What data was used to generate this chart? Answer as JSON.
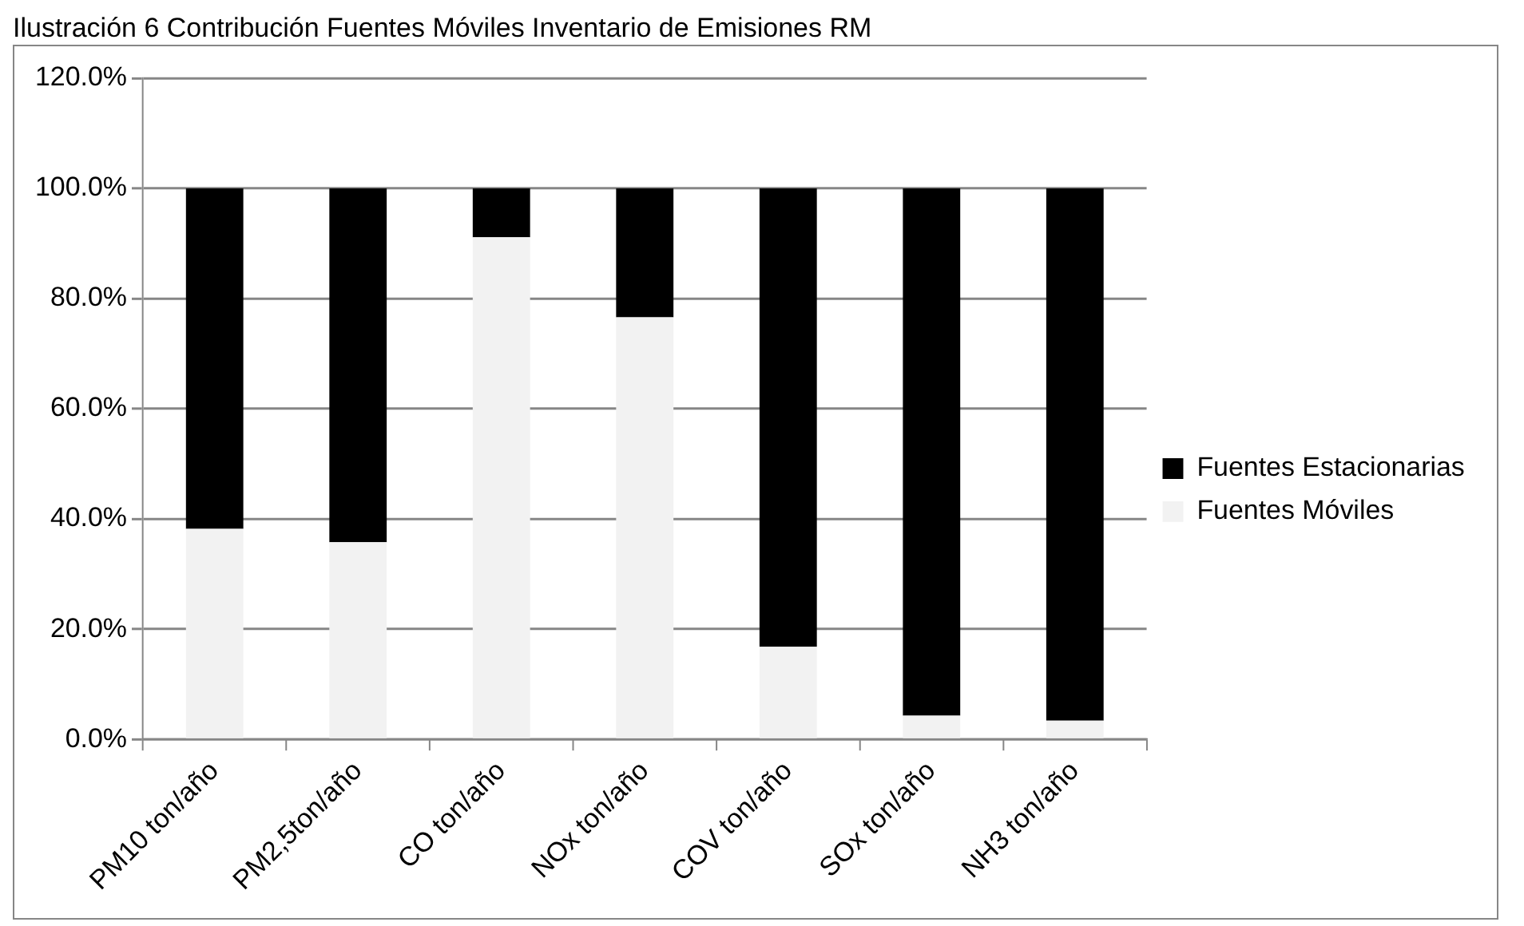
{
  "chart_data": {
    "type": "bar",
    "title": "Ilustración 6 Contribución Fuentes Móviles Inventario de Emisiones RM",
    "categories": [
      "PM10 ton/año",
      "PM2,5ton/año",
      "CO ton/año",
      "NOx ton/año",
      "COV ton/año",
      "SOx ton/año",
      "NH3 ton/año"
    ],
    "series": [
      {
        "name": "Fuentes Móviles",
        "color": "#f2f2f2",
        "values": [
          38.2,
          35.8,
          91.1,
          76.6,
          16.8,
          4.3,
          3.4
        ]
      },
      {
        "name": "Fuentes Estacionarias",
        "color": "#000000",
        "values": [
          61.8,
          64.2,
          8.9,
          23.4,
          83.2,
          95.7,
          96.6
        ]
      }
    ],
    "stacked": true,
    "ylim": [
      0,
      120
    ],
    "yticks": [
      {
        "value": 0,
        "label": "0.0%"
      },
      {
        "value": 20,
        "label": "20.0%"
      },
      {
        "value": 40,
        "label": "40.0%"
      },
      {
        "value": 60,
        "label": "60.0%"
      },
      {
        "value": 80,
        "label": "80.0%"
      },
      {
        "value": 100,
        "label": "100.0%"
      },
      {
        "value": 120,
        "label": "120.0%"
      }
    ],
    "grid": "y",
    "legend": "right"
  }
}
